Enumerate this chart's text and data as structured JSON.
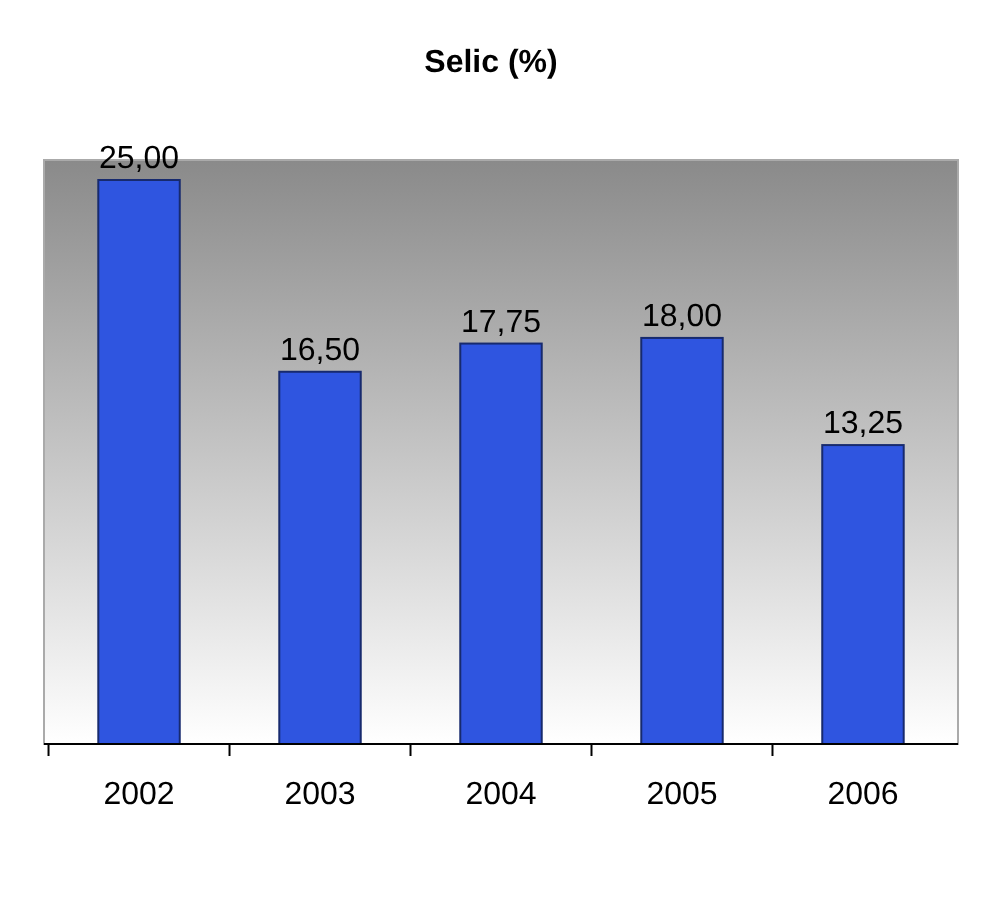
{
  "chart_data": {
    "type": "bar",
    "title": "Selic (%)",
    "categories": [
      "2002",
      "2003",
      "2004",
      "2005",
      "2006"
    ],
    "values": [
      25,
      16.5,
      17.75,
      18,
      13.25
    ],
    "value_labels": [
      "25,00",
      "16,50",
      "17,75",
      "18,00",
      "13,25"
    ],
    "color": "#2f55e0"
  }
}
